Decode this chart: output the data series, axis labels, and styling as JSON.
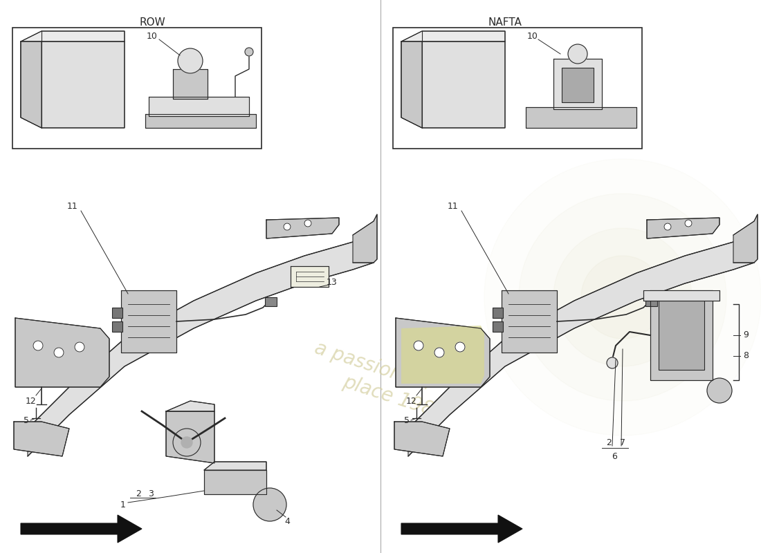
{
  "bg": "#ffffff",
  "lc": "#2a2a2a",
  "left_label": "ROW",
  "right_label": "NAFTA",
  "wm_color": "#d4cfa0",
  "part_gray": "#c8c8c8",
  "part_light": "#e0e0e0",
  "part_dark": "#b0b0b0",
  "highlight": "#d8d890"
}
